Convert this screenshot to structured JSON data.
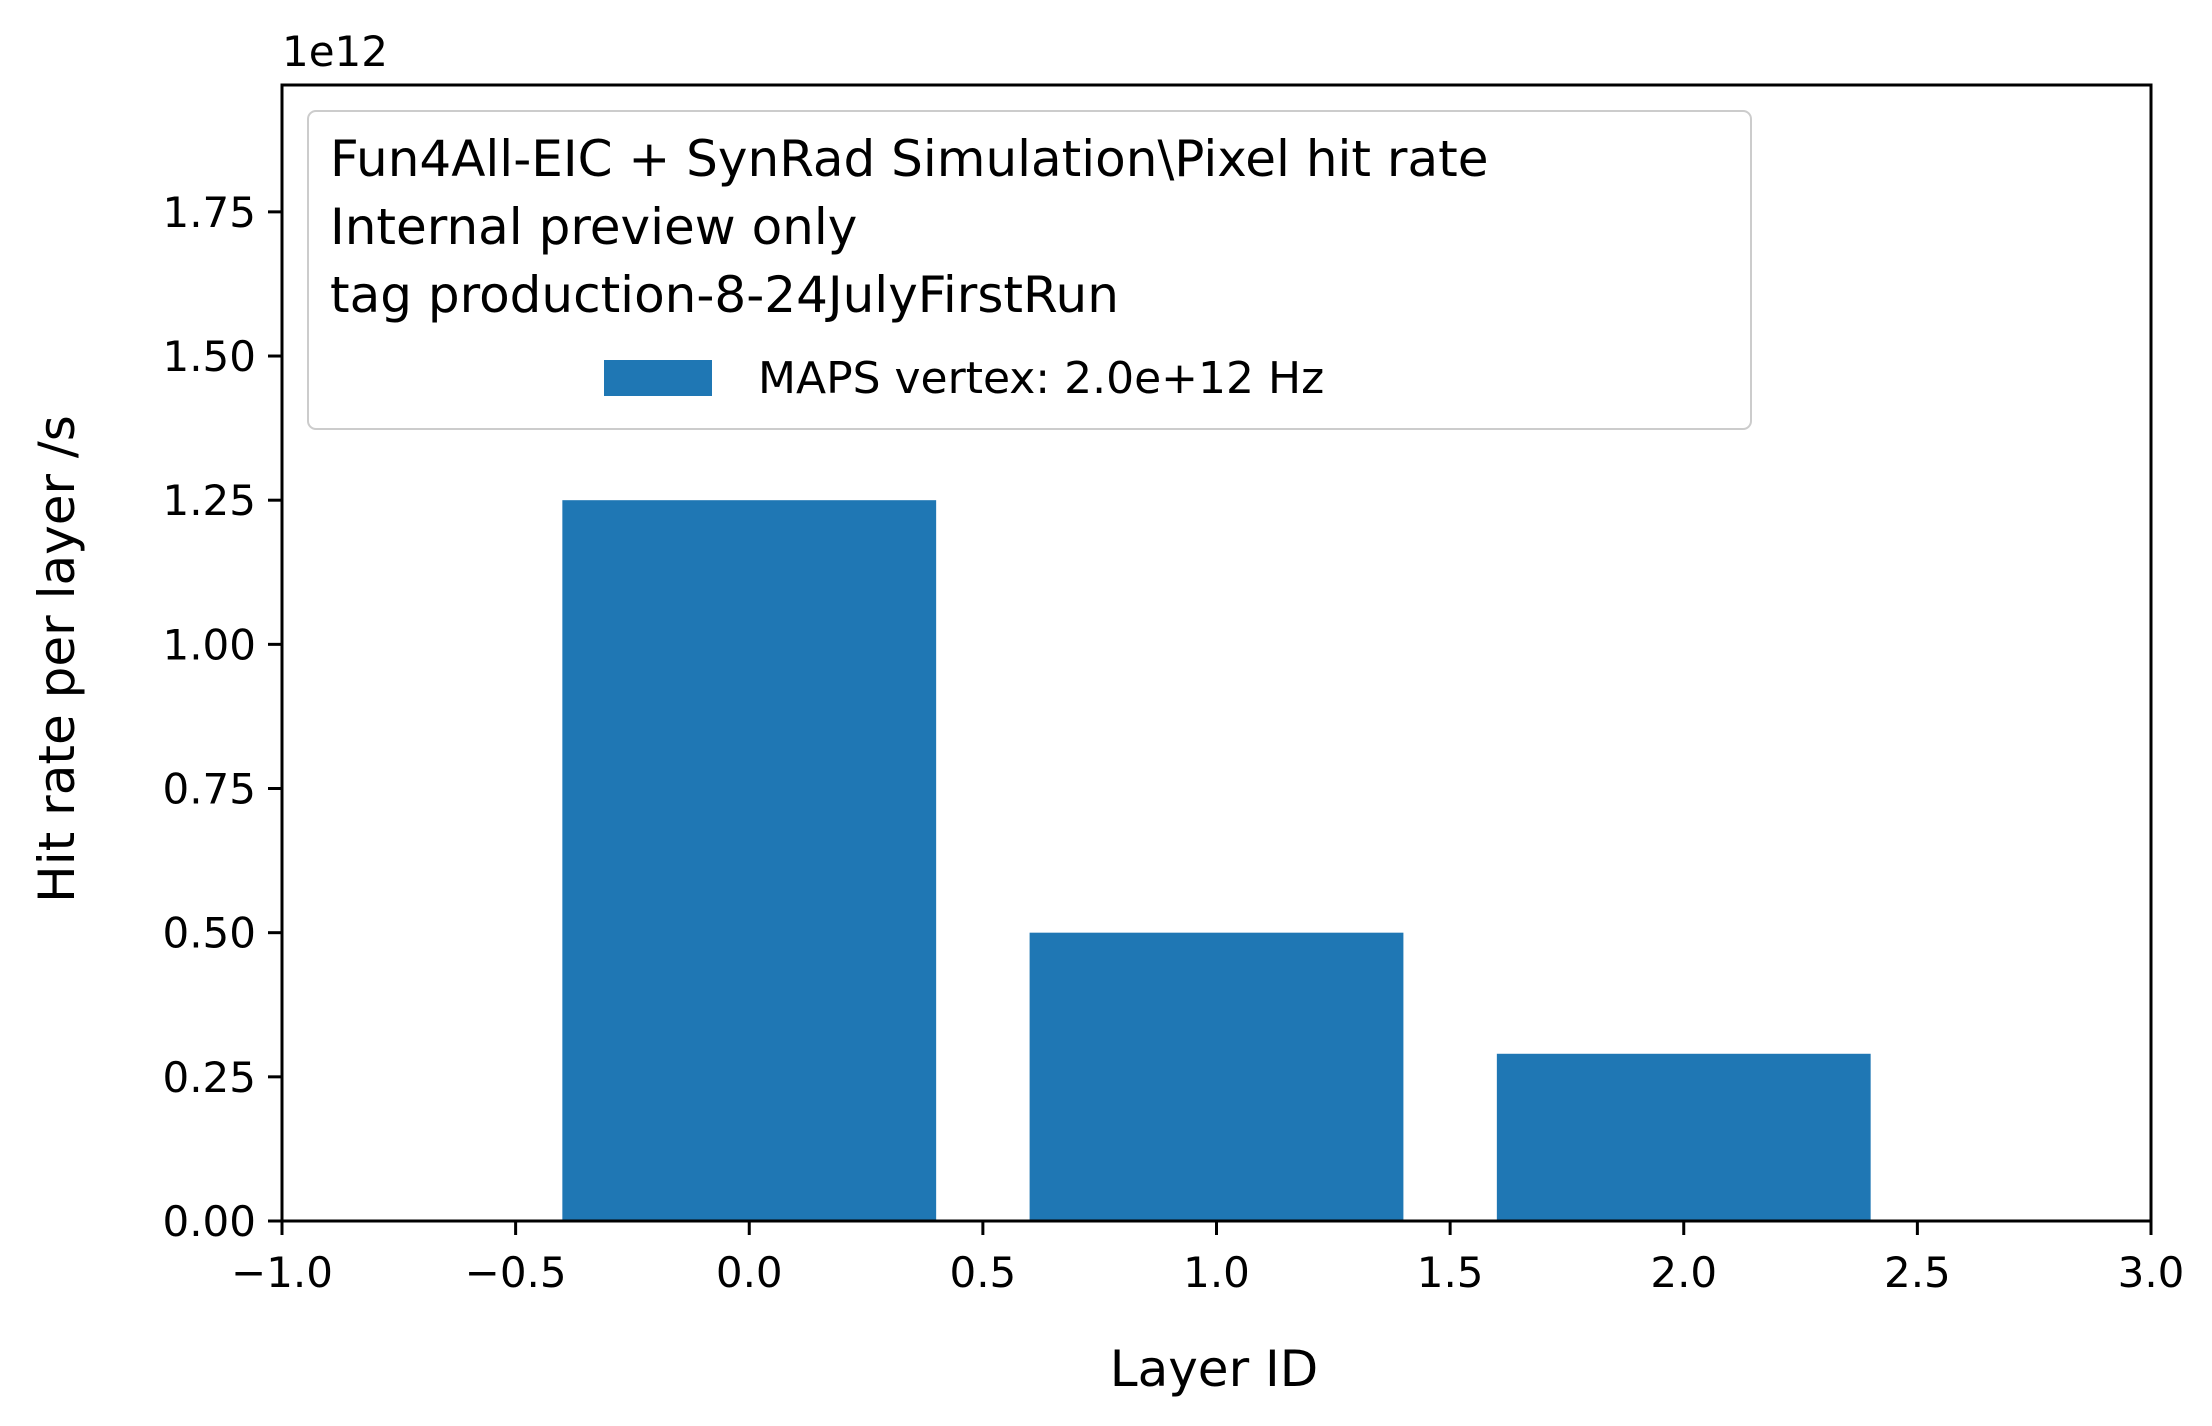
{
  "chart_data": {
    "type": "bar",
    "x": [
      0,
      1,
      2
    ],
    "bar_width": 0.8,
    "values": [
      1250000000000.0,
      500000000000.0,
      290000000000.0
    ],
    "xlabel": "Layer ID",
    "ylabel": "Hit rate per layer /s",
    "xlim": [
      -1.0,
      3.0
    ],
    "ylim": [
      0,
      1970000000000.0
    ],
    "x_ticks": [
      -1.0,
      -0.5,
      0.0,
      0.5,
      1.0,
      1.5,
      2.0,
      2.5,
      3.0
    ],
    "x_tick_labels": [
      "−1.0",
      "−0.5",
      "0.0",
      "0.5",
      "1.0",
      "1.5",
      "2.0",
      "2.5",
      "3.0"
    ],
    "y_ticks": [
      0,
      250000000000.0,
      500000000000.0,
      750000000000.0,
      1000000000000.0,
      1250000000000.0,
      1500000000000.0,
      1750000000000.0
    ],
    "y_tick_labels": [
      "0.00",
      "0.25",
      "0.50",
      "0.75",
      "1.00",
      "1.25",
      "1.50",
      "1.75"
    ],
    "y_offset_label": "1e12",
    "legend": {
      "placement": "top-left",
      "title_lines": [
        "Fun4All-EIC + SynRad Simulation\\Pixel hit rate",
        "Internal preview only",
        "tag production-8-24JulyFirstRun"
      ],
      "entries": [
        "MAPS vertex: 2.0e+12 Hz"
      ]
    },
    "grid": false,
    "colors": {
      "bar": "#1f77b4"
    }
  }
}
